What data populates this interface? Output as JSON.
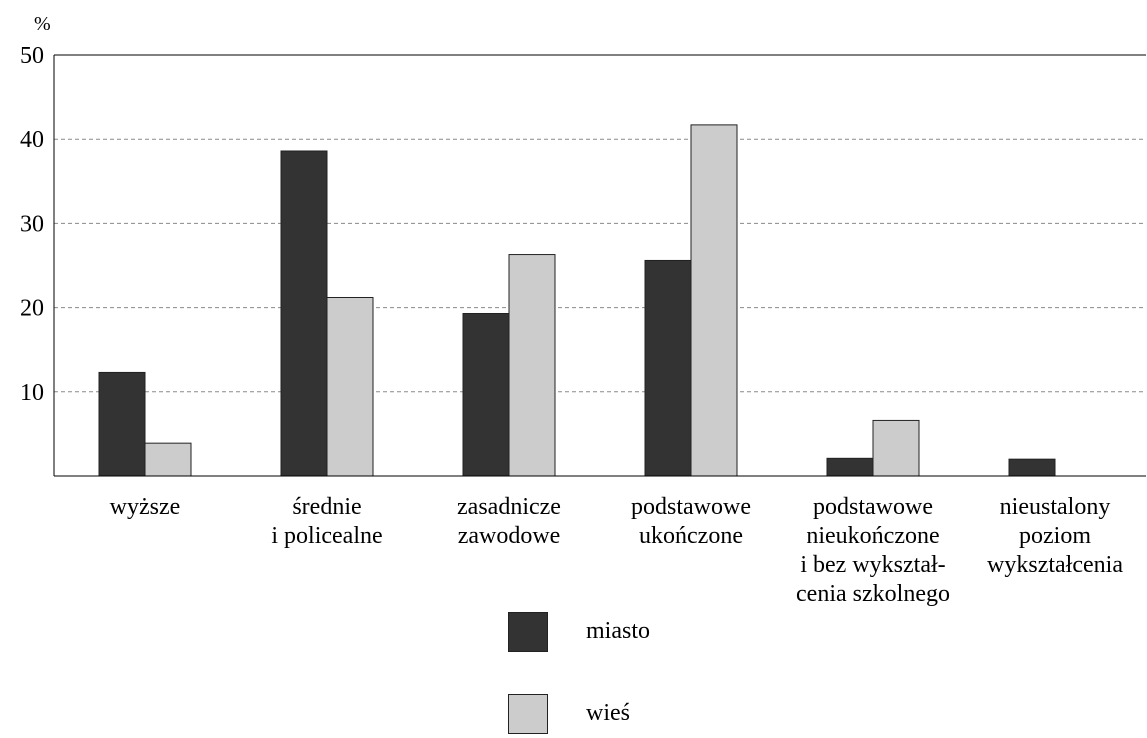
{
  "chart_data": {
    "type": "bar",
    "ylabel": "%",
    "ylim": [
      0,
      50
    ],
    "yticks": [
      "10",
      "20",
      "30",
      "40",
      "50"
    ],
    "grid": true,
    "categories": [
      [
        "wyższe"
      ],
      [
        "średnie",
        "i policealne"
      ],
      [
        "zasadnicze",
        "zawodowe"
      ],
      [
        "podstawowe",
        "ukończone"
      ],
      [
        "podstawowe",
        "nieukończone",
        "i bez wykształ-",
        "cenia szkolnego"
      ],
      [
        "nieustalony",
        "poziom",
        "wykształcenia"
      ]
    ],
    "series": [
      {
        "name": "miasto",
        "color": "#333333",
        "values": [
          12.3,
          38.6,
          19.3,
          25.6,
          2.1,
          2.0
        ]
      },
      {
        "name": "wieś",
        "color": "#cccccc",
        "values": [
          3.9,
          21.2,
          26.3,
          41.7,
          6.6,
          0
        ]
      }
    ],
    "legend_position": "bottom"
  }
}
